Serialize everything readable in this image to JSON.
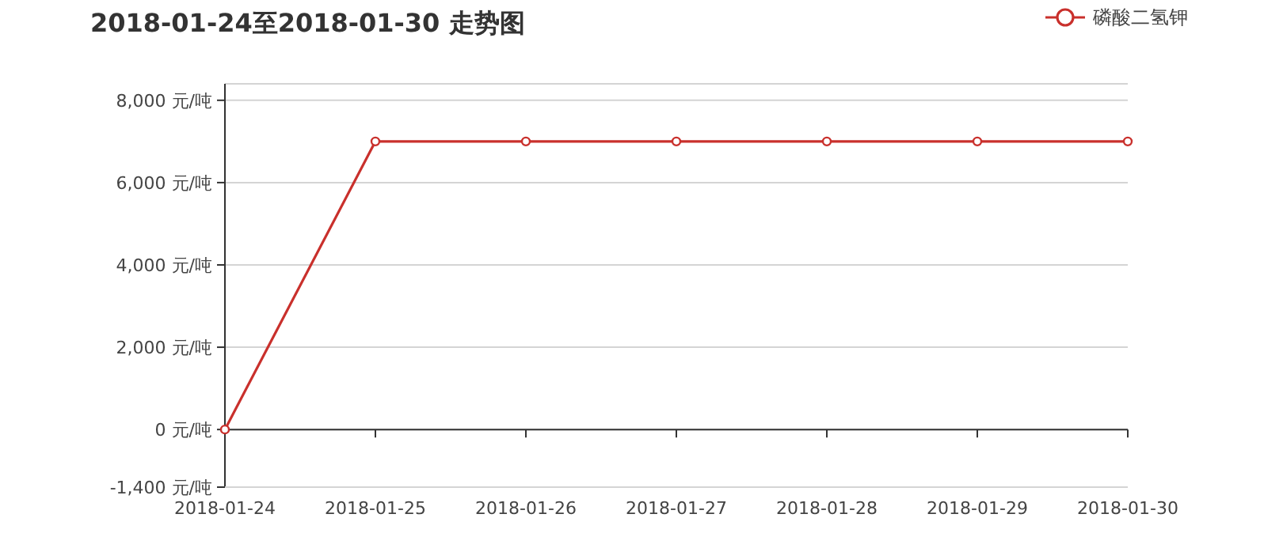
{
  "chart_data": {
    "type": "line",
    "title": "2018-01-24至2018-01-30 走势图",
    "categories": [
      "2018-01-24",
      "2018-01-25",
      "2018-01-26",
      "2018-01-27",
      "2018-01-28",
      "2018-01-29",
      "2018-01-30"
    ],
    "series": [
      {
        "name": "磷酸二氢钾",
        "color": "#c9302c",
        "values": [
          0,
          7000,
          7000,
          7000,
          7000,
          7000,
          7000
        ]
      }
    ],
    "ylim": [
      -1400,
      8400
    ],
    "yticks": [
      {
        "value": -1400,
        "label": "-1,400 元/吨"
      },
      {
        "value": 0,
        "label": "0 元/吨"
      },
      {
        "value": 2000,
        "label": "2,000 元/吨"
      },
      {
        "value": 4000,
        "label": "4,000 元/吨"
      },
      {
        "value": 6000,
        "label": "6,000 元/吨"
      },
      {
        "value": 8000,
        "label": "8,000 元/吨"
      },
      {
        "value": 8400,
        "label": null
      }
    ],
    "grid": "y",
    "legend": "top right",
    "marker": "circle",
    "line_style": "solid"
  }
}
